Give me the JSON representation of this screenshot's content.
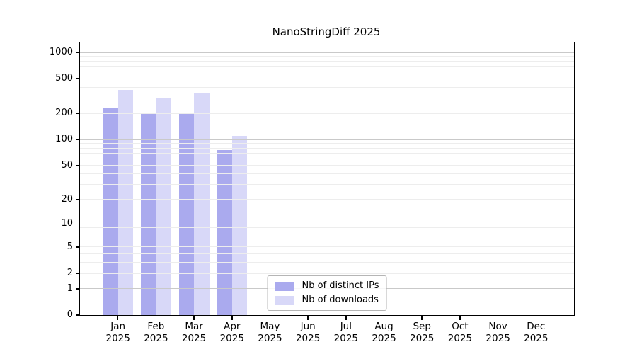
{
  "chart_data": {
    "type": "bar",
    "title": "NanoStringDiff 2025",
    "categories": [
      "Jan",
      "Feb",
      "Mar",
      "Apr",
      "May",
      "Jun",
      "Jul",
      "Aug",
      "Sep",
      "Oct",
      "Nov",
      "Dec"
    ],
    "category_year": "2025",
    "series": [
      {
        "name": "Nb of distinct IPs",
        "color": "#aaaaee",
        "values": [
          228,
          200,
          196,
          76,
          null,
          null,
          null,
          null,
          null,
          null,
          null,
          null
        ]
      },
      {
        "name": "Nb of downloads",
        "color": "#d8d8f8",
        "values": [
          376,
          302,
          346,
          111,
          null,
          null,
          null,
          null,
          null,
          null,
          null,
          null
        ]
      }
    ],
    "xlabel": "",
    "ylabel": "",
    "y_ticks": [
      0,
      1,
      2,
      5,
      10,
      20,
      50,
      100,
      200,
      500,
      1000
    ],
    "scale": "log10(1+y)",
    "ylim": [
      0,
      1300
    ],
    "grid": "horizontal",
    "legend_position": "bottom-center",
    "colors": {
      "axis": "#000000",
      "major_grid": "#c9c9c9",
      "minor_grid": "#ededed",
      "legend_border": "#b5b5b5"
    }
  }
}
